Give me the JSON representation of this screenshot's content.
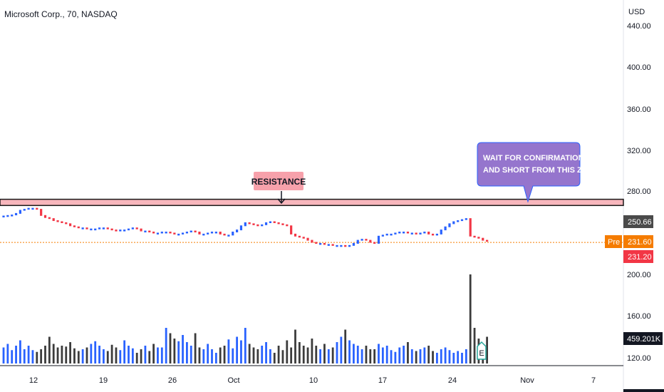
{
  "chart_data": {
    "type": "bar",
    "title": "Microsoft Corp., 70, NASDAQ",
    "currency": "USD",
    "x_ticks": [
      "12",
      "19",
      "26",
      "Oct",
      "10",
      "17",
      "24",
      "Nov",
      "7"
    ],
    "y_ticks": [
      "440.00",
      "400.00",
      "360.00",
      "320.00",
      "280.00",
      "200.00",
      "160.00",
      "120.00"
    ],
    "ylim": [
      112,
      445
    ],
    "resistance_zone": [
      266,
      272
    ],
    "annotations": {
      "resistance_label": "RESISTANCE",
      "callout": [
        "WAIT FOR CONFIRMATION",
        "AND SHORT FROM THIS ZONE"
      ]
    },
    "price_labels": [
      {
        "tag": "",
        "value": "250.66",
        "price": 250.66,
        "color": "#4a4a4a"
      },
      {
        "tag": "Pre",
        "value": "231.60",
        "price": 231.6,
        "color": "#f57c00"
      },
      {
        "tag": "",
        "value": "231.20",
        "price": 231.2,
        "color": "#f23645"
      }
    ],
    "volume_label": "459.201K",
    "earnings_marker": "E",
    "price_series": [
      {
        "x": 0,
        "price": 255.5
      },
      {
        "x": 1,
        "price": 256
      },
      {
        "x": 2,
        "price": 256.5
      },
      {
        "x": 3,
        "price": 258
      },
      {
        "x": 4,
        "price": 261
      },
      {
        "x": 5,
        "price": 262
      },
      {
        "x": 6,
        "price": 263
      },
      {
        "x": 7,
        "price": 263
      },
      {
        "x": 8,
        "price": 262
      },
      {
        "x": 9,
        "price": 256
      },
      {
        "x": 10,
        "price": 254
      },
      {
        "x": 11,
        "price": 253
      },
      {
        "x": 12,
        "price": 251
      },
      {
        "x": 13,
        "price": 250
      },
      {
        "x": 14,
        "price": 249
      },
      {
        "x": 15,
        "price": 248
      },
      {
        "x": 16,
        "price": 246
      },
      {
        "x": 17,
        "price": 245
      },
      {
        "x": 18,
        "price": 244
      },
      {
        "x": 19,
        "price": 244
      },
      {
        "x": 20,
        "price": 243
      },
      {
        "x": 21,
        "price": 243
      },
      {
        "x": 22,
        "price": 243
      },
      {
        "x": 23,
        "price": 244
      },
      {
        "x": 24,
        "price": 244
      },
      {
        "x": 25,
        "price": 243
      },
      {
        "x": 26,
        "price": 242
      },
      {
        "x": 27,
        "price": 241
      },
      {
        "x": 28,
        "price": 242
      },
      {
        "x": 29,
        "price": 242
      },
      {
        "x": 30,
        "price": 243
      },
      {
        "x": 31,
        "price": 244
      },
      {
        "x": 32,
        "price": 243
      },
      {
        "x": 33,
        "price": 241
      },
      {
        "x": 34,
        "price": 241
      },
      {
        "x": 35,
        "price": 240
      },
      {
        "x": 36,
        "price": 239
      },
      {
        "x": 37,
        "price": 239
      },
      {
        "x": 38,
        "price": 240
      },
      {
        "x": 39,
        "price": 240
      },
      {
        "x": 40,
        "price": 239
      },
      {
        "x": 41,
        "price": 238
      },
      {
        "x": 42,
        "price": 238
      },
      {
        "x": 43,
        "price": 239
      },
      {
        "x": 44,
        "price": 240
      },
      {
        "x": 45,
        "price": 241
      },
      {
        "x": 46,
        "price": 240
      },
      {
        "x": 47,
        "price": 238
      },
      {
        "x": 48,
        "price": 238
      },
      {
        "x": 49,
        "price": 239
      },
      {
        "x": 50,
        "price": 240
      },
      {
        "x": 51,
        "price": 240
      },
      {
        "x": 52,
        "price": 238
      },
      {
        "x": 53,
        "price": 237
      },
      {
        "x": 54,
        "price": 237
      },
      {
        "x": 55,
        "price": 240
      },
      {
        "x": 56,
        "price": 242
      },
      {
        "x": 57,
        "price": 246
      },
      {
        "x": 58,
        "price": 249
      },
      {
        "x": 59,
        "price": 248
      },
      {
        "x": 60,
        "price": 247
      },
      {
        "x": 61,
        "price": 246
      },
      {
        "x": 62,
        "price": 247
      },
      {
        "x": 63,
        "price": 249
      },
      {
        "x": 64,
        "price": 250
      },
      {
        "x": 65,
        "price": 249
      },
      {
        "x": 66,
        "price": 248
      },
      {
        "x": 67,
        "price": 247
      },
      {
        "x": 68,
        "price": 246
      },
      {
        "x": 69,
        "price": 238
      },
      {
        "x": 70,
        "price": 236
      },
      {
        "x": 71,
        "price": 235
      },
      {
        "x": 72,
        "price": 234
      },
      {
        "x": 73,
        "price": 232
      },
      {
        "x": 74,
        "price": 230
      },
      {
        "x": 75,
        "price": 229
      },
      {
        "x": 76,
        "price": 229
      },
      {
        "x": 77,
        "price": 228
      },
      {
        "x": 78,
        "price": 228
      },
      {
        "x": 79,
        "price": 227
      },
      {
        "x": 80,
        "price": 227
      },
      {
        "x": 81,
        "price": 227
      },
      {
        "x": 82,
        "price": 226
      },
      {
        "x": 83,
        "price": 227
      },
      {
        "x": 84,
        "price": 229
      },
      {
        "x": 85,
        "price": 232
      },
      {
        "x": 86,
        "price": 233
      },
      {
        "x": 87,
        "price": 232
      },
      {
        "x": 88,
        "price": 230
      },
      {
        "x": 89,
        "price": 229
      },
      {
        "x": 90,
        "price": 236
      },
      {
        "x": 91,
        "price": 237
      },
      {
        "x": 92,
        "price": 238
      },
      {
        "x": 93,
        "price": 238
      },
      {
        "x": 94,
        "price": 239
      },
      {
        "x": 95,
        "price": 240
      },
      {
        "x": 96,
        "price": 240
      },
      {
        "x": 97,
        "price": 239
      },
      {
        "x": 98,
        "price": 239
      },
      {
        "x": 99,
        "price": 238
      },
      {
        "x": 100,
        "price": 239
      },
      {
        "x": 101,
        "price": 240
      },
      {
        "x": 102,
        "price": 238
      },
      {
        "x": 103,
        "price": 237
      },
      {
        "x": 104,
        "price": 238
      },
      {
        "x": 105,
        "price": 242
      },
      {
        "x": 106,
        "price": 245
      },
      {
        "x": 107,
        "price": 248
      },
      {
        "x": 108,
        "price": 250
      },
      {
        "x": 109,
        "price": 251
      },
      {
        "x": 110,
        "price": 252
      },
      {
        "x": 111,
        "price": 253
      },
      {
        "x": 112,
        "price": 236
      },
      {
        "x": 113,
        "price": 235
      },
      {
        "x": 114,
        "price": 234
      },
      {
        "x": 115,
        "price": 232
      },
      {
        "x": 116,
        "price": 231.5
      }
    ],
    "volume_series": [
      {
        "x": 0,
        "volume": 0.18
      },
      {
        "x": 1,
        "volume": 0.22
      },
      {
        "x": 2,
        "volume": 0.15
      },
      {
        "x": 3,
        "volume": 0.2
      },
      {
        "x": 4,
        "volume": 0.26
      },
      {
        "x": 5,
        "volume": 0.16
      },
      {
        "x": 6,
        "volume": 0.2
      },
      {
        "x": 7,
        "volume": 0.15
      },
      {
        "x": 8,
        "volume": 0.13
      },
      {
        "x": 9,
        "volume": 0.16
      },
      {
        "x": 10,
        "volume": 0.2
      },
      {
        "x": 11,
        "volume": 0.3
      },
      {
        "x": 12,
        "volume": 0.22
      },
      {
        "x": 13,
        "volume": 0.18
      },
      {
        "x": 14,
        "volume": 0.2
      },
      {
        "x": 15,
        "volume": 0.19
      },
      {
        "x": 16,
        "volume": 0.24
      },
      {
        "x": 17,
        "volume": 0.17
      },
      {
        "x": 18,
        "volume": 0.14
      },
      {
        "x": 19,
        "volume": 0.16
      },
      {
        "x": 20,
        "volume": 0.18
      },
      {
        "x": 21,
        "volume": 0.22
      },
      {
        "x": 22,
        "volume": 0.25
      },
      {
        "x": 23,
        "volume": 0.2
      },
      {
        "x": 24,
        "volume": 0.16
      },
      {
        "x": 25,
        "volume": 0.14
      },
      {
        "x": 26,
        "volume": 0.21
      },
      {
        "x": 27,
        "volume": 0.18
      },
      {
        "x": 28,
        "volume": 0.15
      },
      {
        "x": 29,
        "volume": 0.26
      },
      {
        "x": 30,
        "volume": 0.2
      },
      {
        "x": 31,
        "volume": 0.17
      },
      {
        "x": 32,
        "volume": 0.12
      },
      {
        "x": 33,
        "volume": 0.16
      },
      {
        "x": 34,
        "volume": 0.2
      },
      {
        "x": 35,
        "volume": 0.14
      },
      {
        "x": 36,
        "volume": 0.22
      },
      {
        "x": 37,
        "volume": 0.18
      },
      {
        "x": 38,
        "volume": 0.18
      },
      {
        "x": 39,
        "volume": 0.4
      },
      {
        "x": 40,
        "volume": 0.34
      },
      {
        "x": 41,
        "volume": 0.28
      },
      {
        "x": 42,
        "volume": 0.25
      },
      {
        "x": 43,
        "volume": 0.32
      },
      {
        "x": 44,
        "volume": 0.24
      },
      {
        "x": 45,
        "volume": 0.2
      },
      {
        "x": 46,
        "volume": 0.34
      },
      {
        "x": 47,
        "volume": 0.18
      },
      {
        "x": 48,
        "volume": 0.16
      },
      {
        "x": 49,
        "volume": 0.22
      },
      {
        "x": 50,
        "volume": 0.16
      },
      {
        "x": 51,
        "volume": 0.12
      },
      {
        "x": 52,
        "volume": 0.18
      },
      {
        "x": 53,
        "volume": 0.2
      },
      {
        "x": 54,
        "volume": 0.27
      },
      {
        "x": 55,
        "volume": 0.17
      },
      {
        "x": 56,
        "volume": 0.3
      },
      {
        "x": 57,
        "volume": 0.26
      },
      {
        "x": 58,
        "volume": 0.4
      },
      {
        "x": 59,
        "volume": 0.22
      },
      {
        "x": 60,
        "volume": 0.18
      },
      {
        "x": 61,
        "volume": 0.16
      },
      {
        "x": 62,
        "volume": 0.2
      },
      {
        "x": 63,
        "volume": 0.24
      },
      {
        "x": 64,
        "volume": 0.16
      },
      {
        "x": 65,
        "volume": 0.12
      },
      {
        "x": 66,
        "volume": 0.2
      },
      {
        "x": 67,
        "volume": 0.15
      },
      {
        "x": 68,
        "volume": 0.26
      },
      {
        "x": 69,
        "volume": 0.18
      },
      {
        "x": 70,
        "volume": 0.38
      },
      {
        "x": 71,
        "volume": 0.24
      },
      {
        "x": 72,
        "volume": 0.2
      },
      {
        "x": 73,
        "volume": 0.18
      },
      {
        "x": 74,
        "volume": 0.28
      },
      {
        "x": 75,
        "volume": 0.2
      },
      {
        "x": 76,
        "volume": 0.16
      },
      {
        "x": 77,
        "volume": 0.22
      },
      {
        "x": 78,
        "volume": 0.16
      },
      {
        "x": 79,
        "volume": 0.18
      },
      {
        "x": 80,
        "volume": 0.24
      },
      {
        "x": 81,
        "volume": 0.3
      },
      {
        "x": 82,
        "volume": 0.38
      },
      {
        "x": 83,
        "volume": 0.26
      },
      {
        "x": 84,
        "volume": 0.22
      },
      {
        "x": 85,
        "volume": 0.2
      },
      {
        "x": 86,
        "volume": 0.16
      },
      {
        "x": 87,
        "volume": 0.2
      },
      {
        "x": 88,
        "volume": 0.16
      },
      {
        "x": 89,
        "volume": 0.16
      },
      {
        "x": 90,
        "volume": 0.22
      },
      {
        "x": 91,
        "volume": 0.18
      },
      {
        "x": 92,
        "volume": 0.2
      },
      {
        "x": 93,
        "volume": 0.15
      },
      {
        "x": 94,
        "volume": 0.13
      },
      {
        "x": 95,
        "volume": 0.18
      },
      {
        "x": 96,
        "volume": 0.2
      },
      {
        "x": 97,
        "volume": 0.24
      },
      {
        "x": 98,
        "volume": 0.16
      },
      {
        "x": 99,
        "volume": 0.14
      },
      {
        "x": 100,
        "volume": 0.16
      },
      {
        "x": 101,
        "volume": 0.18
      },
      {
        "x": 102,
        "volume": 0.2
      },
      {
        "x": 103,
        "volume": 0.14
      },
      {
        "x": 104,
        "volume": 0.12
      },
      {
        "x": 105,
        "volume": 0.16
      },
      {
        "x": 106,
        "volume": 0.18
      },
      {
        "x": 107,
        "volume": 0.15
      },
      {
        "x": 108,
        "volume": 0.12
      },
      {
        "x": 109,
        "volume": 0.14
      },
      {
        "x": 110,
        "volume": 0.12
      },
      {
        "x": 111,
        "volume": 0.16
      },
      {
        "x": 112,
        "volume": 1.0
      },
      {
        "x": 113,
        "volume": 0.4
      },
      {
        "x": 114,
        "volume": 0.28
      },
      {
        "x": 115,
        "volume": 0.2
      },
      {
        "x": 116,
        "volume": 0.3
      }
    ],
    "colors": {
      "up": "#2962ff",
      "down": "#f23645",
      "volume_up": "#2962ff",
      "volume_down": "#3c3c3c",
      "zone_fill": "#f7b6bc",
      "zone_border": "#1a1a1a",
      "resistance_bg": "#f7a1ab",
      "callout_bg": "#9575cd",
      "callout_border": "#2962ff",
      "pre_line": "#f57c00",
      "earnings": "#26a69a"
    }
  }
}
